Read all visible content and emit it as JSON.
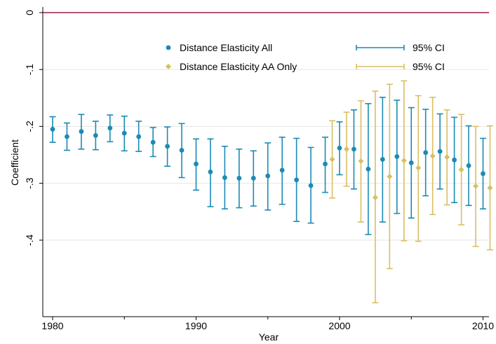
{
  "chart_data": {
    "type": "scatter",
    "xlabel": "Year",
    "ylabel": "Coefficient",
    "xlim": [
      1979.7,
      2010.8
    ],
    "ylim": [
      -0.52,
      0.02
    ],
    "x_ticks": [
      {
        "value": 1980,
        "label": "1980"
      },
      {
        "value": 1990,
        "label": "1990"
      },
      {
        "value": 2000,
        "label": "2000"
      },
      {
        "value": 2010,
        "label": "2010"
      }
    ],
    "y_ticks": [
      {
        "value": 0,
        "label": "0"
      },
      {
        "value": -0.1,
        "label": "-.1"
      },
      {
        "value": -0.2,
        "label": "-.2"
      },
      {
        "value": -0.3,
        "label": "-.3"
      },
      {
        "value": -0.4,
        "label": "-.4"
      }
    ],
    "reference_line": {
      "y": 0,
      "color": "#9b1b4b"
    },
    "grid": true,
    "legend": {
      "position": "top",
      "entries": [
        {
          "label": "Distance Elasticity All",
          "kind": "marker",
          "series": 0
        },
        {
          "label": "95% CI",
          "kind": "ci",
          "series": 0
        },
        {
          "label": "Distance Elasticity AA Only",
          "kind": "marker",
          "series": 1
        },
        {
          "label": "95% CI",
          "kind": "ci",
          "series": 1
        }
      ]
    },
    "series": [
      {
        "name": "Distance Elasticity All",
        "marker": "circle",
        "color": "#1a8bb4",
        "points": [
          {
            "x": 1980,
            "y": -0.205,
            "lo": -0.228,
            "hi": -0.183
          },
          {
            "x": 1981,
            "y": -0.218,
            "lo": -0.242,
            "hi": -0.194
          },
          {
            "x": 1982,
            "y": -0.209,
            "lo": -0.24,
            "hi": -0.179
          },
          {
            "x": 1983,
            "y": -0.216,
            "lo": -0.241,
            "hi": -0.191
          },
          {
            "x": 1984,
            "y": -0.203,
            "lo": -0.227,
            "hi": -0.18
          },
          {
            "x": 1985,
            "y": -0.212,
            "lo": -0.243,
            "hi": -0.182
          },
          {
            "x": 1986,
            "y": -0.218,
            "lo": -0.244,
            "hi": -0.191
          },
          {
            "x": 1987,
            "y": -0.228,
            "lo": -0.253,
            "hi": -0.202
          },
          {
            "x": 1988,
            "y": -0.235,
            "lo": -0.27,
            "hi": -0.201
          },
          {
            "x": 1989,
            "y": -0.242,
            "lo": -0.29,
            "hi": -0.195
          },
          {
            "x": 1990,
            "y": -0.266,
            "lo": -0.312,
            "hi": -0.222
          },
          {
            "x": 1991,
            "y": -0.28,
            "lo": -0.341,
            "hi": -0.222
          },
          {
            "x": 1992,
            "y": -0.29,
            "lo": -0.345,
            "hi": -0.235
          },
          {
            "x": 1993,
            "y": -0.291,
            "lo": -0.343,
            "hi": -0.24
          },
          {
            "x": 1994,
            "y": -0.291,
            "lo": -0.34,
            "hi": -0.243
          },
          {
            "x": 1995,
            "y": -0.287,
            "lo": -0.347,
            "hi": -0.229
          },
          {
            "x": 1996,
            "y": -0.277,
            "lo": -0.337,
            "hi": -0.219
          },
          {
            "x": 1997,
            "y": -0.294,
            "lo": -0.367,
            "hi": -0.221
          },
          {
            "x": 1998,
            "y": -0.304,
            "lo": -0.37,
            "hi": -0.237
          },
          {
            "x": 1999,
            "y": -0.266,
            "lo": -0.316,
            "hi": -0.219
          },
          {
            "x": 2000,
            "y": -0.238,
            "lo": -0.285,
            "hi": -0.192
          },
          {
            "x": 2001,
            "y": -0.24,
            "lo": -0.31,
            "hi": -0.171
          },
          {
            "x": 2002,
            "y": -0.275,
            "lo": -0.39,
            "hi": -0.16
          },
          {
            "x": 2003,
            "y": -0.258,
            "lo": -0.368,
            "hi": -0.149
          },
          {
            "x": 2004,
            "y": -0.253,
            "lo": -0.353,
            "hi": -0.154
          },
          {
            "x": 2005,
            "y": -0.264,
            "lo": -0.361,
            "hi": -0.167
          },
          {
            "x": 2006,
            "y": -0.246,
            "lo": -0.322,
            "hi": -0.17
          },
          {
            "x": 2007,
            "y": -0.244,
            "lo": -0.31,
            "hi": -0.178
          },
          {
            "x": 2008,
            "y": -0.259,
            "lo": -0.334,
            "hi": -0.184
          },
          {
            "x": 2009,
            "y": -0.269,
            "lo": -0.339,
            "hi": -0.199
          },
          {
            "x": 2010,
            "y": -0.283,
            "lo": -0.345,
            "hi": -0.221
          }
        ]
      },
      {
        "name": "Distance Elasticity AA Only",
        "marker": "diamond",
        "color": "#d9bf62",
        "points": [
          {
            "x": 1999,
            "y": -0.258,
            "lo": -0.326,
            "hi": -0.19
          },
          {
            "x": 2000,
            "y": -0.24,
            "lo": -0.305,
            "hi": -0.175
          },
          {
            "x": 2001,
            "y": -0.261,
            "lo": -0.368,
            "hi": -0.155
          },
          {
            "x": 2002,
            "y": -0.325,
            "lo": -0.51,
            "hi": -0.138
          },
          {
            "x": 2003,
            "y": -0.288,
            "lo": -0.45,
            "hi": -0.126
          },
          {
            "x": 2004,
            "y": -0.26,
            "lo": -0.401,
            "hi": -0.12
          },
          {
            "x": 2005,
            "y": -0.273,
            "lo": -0.402,
            "hi": -0.146
          },
          {
            "x": 2006,
            "y": -0.252,
            "lo": -0.355,
            "hi": -0.149
          },
          {
            "x": 2007,
            "y": -0.254,
            "lo": -0.338,
            "hi": -0.171
          },
          {
            "x": 2008,
            "y": -0.276,
            "lo": -0.373,
            "hi": -0.179
          },
          {
            "x": 2009,
            "y": -0.305,
            "lo": -0.411,
            "hi": -0.2
          },
          {
            "x": 2010,
            "y": -0.308,
            "lo": -0.417,
            "hi": -0.199
          }
        ]
      }
    ]
  }
}
